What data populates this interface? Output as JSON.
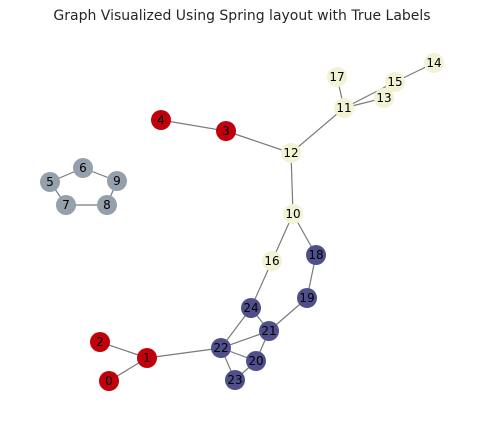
{
  "title": "Graph Visualized Using Spring layout with True Labels",
  "colors": {
    "red": "#c0000a",
    "cream": "#f2f2d4",
    "gray": "#94a0ab",
    "navy": "#4f4f8c",
    "edge": "#7a7a7a"
  },
  "nodes": [
    {
      "id": "0",
      "group": "red"
    },
    {
      "id": "1",
      "group": "red"
    },
    {
      "id": "2",
      "group": "red"
    },
    {
      "id": "3",
      "group": "red"
    },
    {
      "id": "4",
      "group": "red"
    },
    {
      "id": "5",
      "group": "gray"
    },
    {
      "id": "6",
      "group": "gray"
    },
    {
      "id": "7",
      "group": "gray"
    },
    {
      "id": "8",
      "group": "gray"
    },
    {
      "id": "9",
      "group": "gray"
    },
    {
      "id": "10",
      "group": "cream"
    },
    {
      "id": "11",
      "group": "cream"
    },
    {
      "id": "12",
      "group": "cream"
    },
    {
      "id": "13",
      "group": "cream"
    },
    {
      "id": "14",
      "group": "cream"
    },
    {
      "id": "15",
      "group": "cream"
    },
    {
      "id": "16",
      "group": "cream"
    },
    {
      "id": "17",
      "group": "cream"
    },
    {
      "id": "18",
      "group": "navy"
    },
    {
      "id": "19",
      "group": "navy"
    },
    {
      "id": "20",
      "group": "navy"
    },
    {
      "id": "21",
      "group": "navy"
    },
    {
      "id": "22",
      "group": "navy"
    },
    {
      "id": "23",
      "group": "navy"
    },
    {
      "id": "24",
      "group": "navy"
    }
  ],
  "edges": [
    [
      "0",
      "1"
    ],
    [
      "2",
      "1"
    ],
    [
      "1",
      "22"
    ],
    [
      "4",
      "3"
    ],
    [
      "3",
      "12"
    ],
    [
      "12",
      "11"
    ],
    [
      "12",
      "10"
    ],
    [
      "11",
      "17"
    ],
    [
      "11",
      "13"
    ],
    [
      "11",
      "15"
    ],
    [
      "15",
      "13"
    ],
    [
      "15",
      "14"
    ],
    [
      "10",
      "16"
    ],
    [
      "10",
      "18"
    ],
    [
      "18",
      "19"
    ],
    [
      "19",
      "21"
    ],
    [
      "16",
      "24"
    ],
    [
      "24",
      "22"
    ],
    [
      "24",
      "21"
    ],
    [
      "21",
      "22"
    ],
    [
      "21",
      "20"
    ],
    [
      "22",
      "20"
    ],
    [
      "22",
      "23"
    ],
    [
      "20",
      "23"
    ],
    [
      "5",
      "6"
    ],
    [
      "6",
      "9"
    ],
    [
      "9",
      "8"
    ],
    [
      "8",
      "7"
    ],
    [
      "7",
      "5"
    ]
  ]
}
